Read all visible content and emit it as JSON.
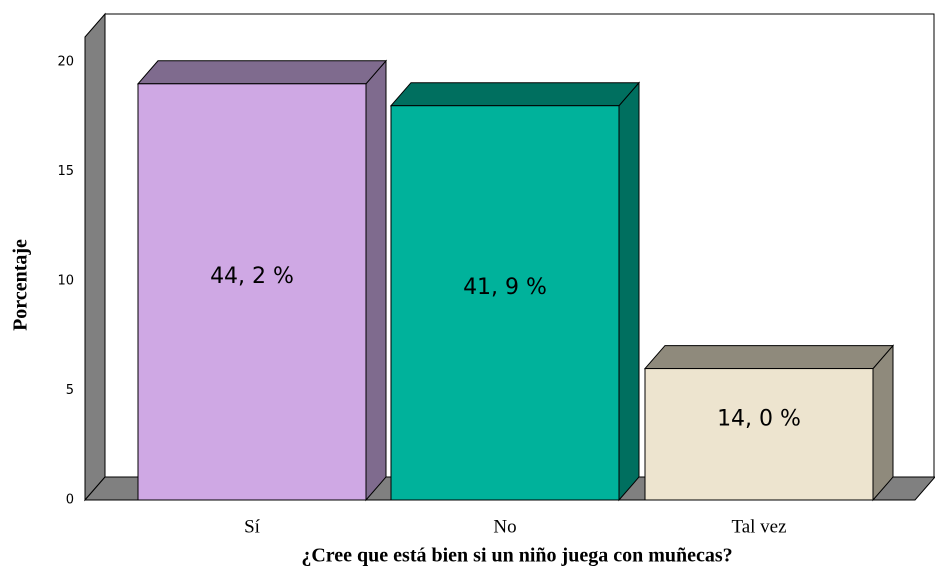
{
  "chart_data": {
    "type": "bar3d",
    "xlabel": "¿Cree que está bien si un niño juega con muñecas?",
    "ylabel": "Porcentaje",
    "categories": [
      "Sí",
      "No",
      "Tal vez"
    ],
    "values": [
      19,
      18,
      6
    ],
    "annotations": [
      "44, 2 %",
      "41, 9 %",
      "14, 0 %"
    ],
    "colors": [
      "#cfa8e4",
      "#00b29b",
      "#ede4cf"
    ],
    "side_colors": [
      "#7f6b8e",
      "#006f5f",
      "#8f8a7c"
    ],
    "ylim": [
      0,
      21
    ],
    "yticks": [
      0,
      5,
      10,
      15,
      20
    ]
  }
}
